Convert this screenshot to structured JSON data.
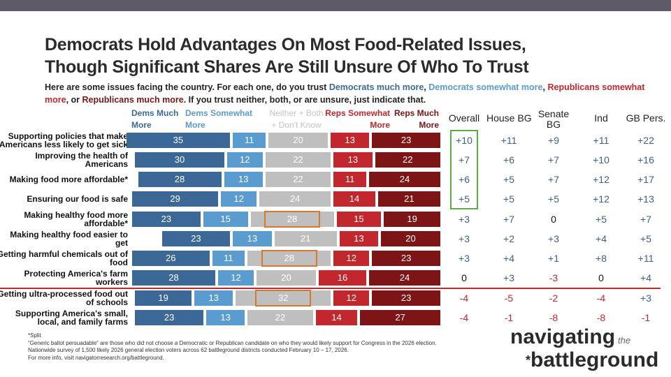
{
  "header": {
    "title_line1": "Democrats Hold Advantages On Most Food-Related Issues,",
    "title_line2": "Though Significant Shares Are Still Unsure Of Who To Trust",
    "subtitle": {
      "p1": "Here are some issues facing the country. For each one, do you trust ",
      "dm": "Democrats much more",
      "c1": ", ",
      "ds": "Democrats somewhat more",
      "c2": ", ",
      "rs": "Republicans somewhat more",
      "c3": ", or ",
      "rm": "Republicans much more",
      "p2": ". If you trust neither, both, or are unsure, just indicate that."
    }
  },
  "chart_data": {
    "type": "stacked-bar",
    "legend": [
      "Dems Much More",
      "Dems Somewhat More",
      "Neither + Both + Don't Know",
      "Reps Somewhat More",
      "Reps Much More"
    ],
    "legend_lines": [
      [
        "Dems Much",
        "More"
      ],
      [
        "Dems Somewhat",
        "More"
      ],
      [
        "Neither + Both",
        "+ Don't Know"
      ],
      [
        "Reps Somewhat",
        "More"
      ],
      [
        "Reps Much",
        "More"
      ]
    ],
    "colors": [
      "#3b6896",
      "#5a9bd0",
      "#bfbfbf",
      "#c1272d",
      "#7d1416"
    ],
    "categories": [
      [
        "Supporting policies that make",
        "Americans less likely to get sick"
      ],
      [
        "Improving the health of",
        "Americans"
      ],
      [
        "Making food more affordable*",
        ""
      ],
      [
        "Ensuring our food is safe",
        ""
      ],
      [
        "Making healthy food more",
        "affordable*"
      ],
      [
        "Making healthy food easier to",
        "get"
      ],
      [
        "Getting harmful chemicals out of",
        "food"
      ],
      [
        "Protecting America's farm",
        "workers"
      ],
      [
        "Getting ultra-processed food out",
        "of schools"
      ],
      [
        "Supporting America's small,",
        "local, and family farms"
      ]
    ],
    "values": [
      [
        35,
        11,
        20,
        13,
        23
      ],
      [
        30,
        12,
        22,
        13,
        22
      ],
      [
        28,
        13,
        22,
        11,
        24
      ],
      [
        29,
        12,
        24,
        14,
        21
      ],
      [
        23,
        15,
        28,
        15,
        19
      ],
      [
        23,
        13,
        21,
        13,
        20
      ],
      [
        26,
        11,
        28,
        12,
        23
      ],
      [
        28,
        12,
        20,
        16,
        24
      ],
      [
        19,
        13,
        32,
        12,
        23
      ],
      [
        23,
        13,
        22,
        14,
        27
      ]
    ],
    "highlighted_neutral_rows": [
      4,
      6,
      8
    ]
  },
  "table": {
    "headers": [
      "Overall",
      [
        "House BG"
      ],
      [
        "Senate",
        "BG"
      ],
      "Ind",
      "GB Pers."
    ],
    "header_labels": [
      "Overall",
      "House BG",
      "Senate BG",
      "Ind",
      "GB Pers."
    ],
    "rows": [
      [
        "+10",
        "+11",
        "+9",
        "+11",
        "+22"
      ],
      [
        "+7",
        "+6",
        "+7",
        "+10",
        "+16"
      ],
      [
        "+6",
        "+5",
        "+7",
        "+12",
        "+17"
      ],
      [
        "+5",
        "+5",
        "+5",
        "+12",
        "+13"
      ],
      [
        "+3",
        "+7",
        "0",
        "+5",
        "+7"
      ],
      [
        "+3",
        "+2",
        "+3",
        "+4",
        "+5"
      ],
      [
        "+3",
        "+4",
        "+1",
        "+8",
        "+11"
      ],
      [
        "0",
        "+3",
        "-3",
        "0",
        "+4"
      ],
      [
        "-4",
        "-5",
        "-2",
        "-4",
        "+3"
      ],
      [
        "-4",
        "-1",
        "-8",
        "-8",
        "-1"
      ]
    ],
    "colors": {
      "positive": "#3f6089",
      "negative": "#c1272d",
      "zero": "#111111"
    }
  },
  "footnotes": [
    "*Split",
    "“Generic ballot persuadable” are those who did not choose a Democratic or Republican candidate on who they would likely support for Congress in the 2026 election.",
    "Nationwide survey of 1,500 likely 2026 general election voters across 62 battleground districts conducted February 10 – 17, 2026.",
    "For more info, visit navigatorresearch.org/battleground."
  ],
  "logo": {
    "w1": "navigating",
    "w2": "the",
    "w3": "battleground"
  }
}
